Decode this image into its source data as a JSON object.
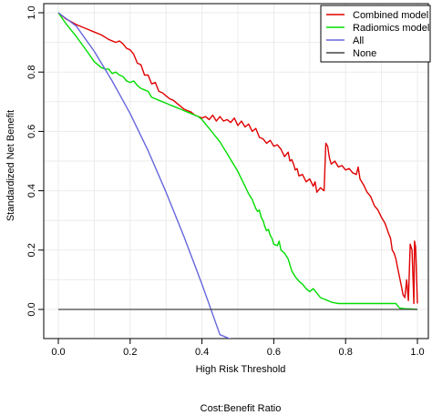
{
  "chart_data": {
    "type": "line",
    "xlabel": "High Risk Threshold",
    "ylabel": "Standardized Net Benefit",
    "secondary_xlabel": "Cost:Benefit Ratio",
    "xlim": [
      0,
      1
    ],
    "ylim": [
      0,
      1
    ],
    "x_ticks": [
      0.0,
      0.2,
      0.4,
      0.6,
      0.8,
      1.0
    ],
    "x_tick_labels": [
      "0.0",
      "0.2",
      "0.4",
      "0.6",
      "0.8",
      "1.0"
    ],
    "y_ticks": [
      0.0,
      0.2,
      0.4,
      0.6,
      0.8,
      1.0
    ],
    "y_tick_labels": [
      "0.0",
      "0.2",
      "0.4",
      "0.6",
      "0.8",
      "1.0"
    ],
    "grid": true,
    "legend_position": "top-right",
    "series": [
      {
        "name": "Combined model",
        "color": "#e00000",
        "points": [
          [
            0.0,
            1.0
          ],
          [
            0.02,
            0.98
          ],
          [
            0.05,
            0.96
          ],
          [
            0.08,
            0.945
          ],
          [
            0.1,
            0.935
          ],
          [
            0.12,
            0.925
          ],
          [
            0.14,
            0.91
          ],
          [
            0.16,
            0.9
          ],
          [
            0.17,
            0.905
          ],
          [
            0.18,
            0.895
          ],
          [
            0.19,
            0.88
          ],
          [
            0.2,
            0.875
          ],
          [
            0.21,
            0.86
          ],
          [
            0.22,
            0.83
          ],
          [
            0.23,
            0.825
          ],
          [
            0.24,
            0.79
          ],
          [
            0.25,
            0.79
          ],
          [
            0.26,
            0.76
          ],
          [
            0.27,
            0.765
          ],
          [
            0.28,
            0.735
          ],
          [
            0.29,
            0.73
          ],
          [
            0.3,
            0.72
          ],
          [
            0.31,
            0.71
          ],
          [
            0.32,
            0.705
          ],
          [
            0.33,
            0.695
          ],
          [
            0.34,
            0.685
          ],
          [
            0.35,
            0.675
          ],
          [
            0.36,
            0.67
          ],
          [
            0.37,
            0.665
          ],
          [
            0.38,
            0.655
          ],
          [
            0.39,
            0.65
          ],
          [
            0.4,
            0.645
          ],
          [
            0.41,
            0.65
          ],
          [
            0.42,
            0.64
          ],
          [
            0.43,
            0.655
          ],
          [
            0.44,
            0.635
          ],
          [
            0.45,
            0.65
          ],
          [
            0.46,
            0.635
          ],
          [
            0.47,
            0.64
          ],
          [
            0.48,
            0.63
          ],
          [
            0.49,
            0.645
          ],
          [
            0.5,
            0.62
          ],
          [
            0.51,
            0.635
          ],
          [
            0.52,
            0.615
          ],
          [
            0.53,
            0.625
          ],
          [
            0.54,
            0.6
          ],
          [
            0.55,
            0.61
          ],
          [
            0.56,
            0.58
          ],
          [
            0.57,
            0.575
          ],
          [
            0.58,
            0.56
          ],
          [
            0.59,
            0.57
          ],
          [
            0.6,
            0.55
          ],
          [
            0.61,
            0.555
          ],
          [
            0.62,
            0.54
          ],
          [
            0.63,
            0.515
          ],
          [
            0.64,
            0.53
          ],
          [
            0.645,
            0.5
          ],
          [
            0.65,
            0.505
          ],
          [
            0.655,
            0.49
          ],
          [
            0.66,
            0.47
          ],
          [
            0.665,
            0.475
          ],
          [
            0.67,
            0.45
          ],
          [
            0.68,
            0.455
          ],
          [
            0.69,
            0.43
          ],
          [
            0.7,
            0.44
          ],
          [
            0.71,
            0.415
          ],
          [
            0.715,
            0.43
          ],
          [
            0.72,
            0.395
          ],
          [
            0.73,
            0.41
          ],
          [
            0.74,
            0.4
          ],
          [
            0.745,
            0.56
          ],
          [
            0.75,
            0.55
          ],
          [
            0.755,
            0.51
          ],
          [
            0.76,
            0.49
          ],
          [
            0.77,
            0.5
          ],
          [
            0.78,
            0.48
          ],
          [
            0.79,
            0.485
          ],
          [
            0.8,
            0.47
          ],
          [
            0.81,
            0.475
          ],
          [
            0.82,
            0.46
          ],
          [
            0.83,
            0.455
          ],
          [
            0.835,
            0.48
          ],
          [
            0.84,
            0.44
          ],
          [
            0.85,
            0.42
          ],
          [
            0.86,
            0.395
          ],
          [
            0.87,
            0.38
          ],
          [
            0.88,
            0.35
          ],
          [
            0.89,
            0.335
          ],
          [
            0.9,
            0.31
          ],
          [
            0.905,
            0.3
          ],
          [
            0.91,
            0.29
          ],
          [
            0.92,
            0.255
          ],
          [
            0.925,
            0.24
          ],
          [
            0.93,
            0.2
          ],
          [
            0.935,
            0.19
          ],
          [
            0.94,
            0.17
          ],
          [
            0.945,
            0.14
          ],
          [
            0.95,
            0.11
          ],
          [
            0.955,
            0.08
          ],
          [
            0.96,
            0.05
          ],
          [
            0.965,
            0.04
          ],
          [
            0.97,
            0.1
          ],
          [
            0.975,
            0.03
          ],
          [
            0.98,
            0.22
          ],
          [
            0.985,
            0.2
          ],
          [
            0.99,
            0.02
          ],
          [
            0.992,
            0.23
          ],
          [
            0.995,
            0.21
          ],
          [
            1.0,
            0.02
          ]
        ]
      },
      {
        "name": "Radiomics model",
        "color": "#00dd00",
        "points": [
          [
            0.0,
            1.0
          ],
          [
            0.02,
            0.965
          ],
          [
            0.05,
            0.92
          ],
          [
            0.08,
            0.87
          ],
          [
            0.1,
            0.835
          ],
          [
            0.12,
            0.815
          ],
          [
            0.13,
            0.81
          ],
          [
            0.14,
            0.81
          ],
          [
            0.15,
            0.795
          ],
          [
            0.16,
            0.8
          ],
          [
            0.17,
            0.79
          ],
          [
            0.18,
            0.785
          ],
          [
            0.19,
            0.77
          ],
          [
            0.2,
            0.765
          ],
          [
            0.21,
            0.77
          ],
          [
            0.22,
            0.755
          ],
          [
            0.23,
            0.745
          ],
          [
            0.24,
            0.74
          ],
          [
            0.25,
            0.735
          ],
          [
            0.26,
            0.715
          ],
          [
            0.27,
            0.71
          ],
          [
            0.28,
            0.705
          ],
          [
            0.29,
            0.7
          ],
          [
            0.3,
            0.695
          ],
          [
            0.31,
            0.69
          ],
          [
            0.32,
            0.685
          ],
          [
            0.33,
            0.68
          ],
          [
            0.34,
            0.675
          ],
          [
            0.35,
            0.67
          ],
          [
            0.36,
            0.665
          ],
          [
            0.37,
            0.66
          ],
          [
            0.38,
            0.655
          ],
          [
            0.39,
            0.65
          ],
          [
            0.4,
            0.64
          ],
          [
            0.41,
            0.625
          ],
          [
            0.42,
            0.61
          ],
          [
            0.43,
            0.595
          ],
          [
            0.44,
            0.58
          ],
          [
            0.45,
            0.565
          ],
          [
            0.46,
            0.545
          ],
          [
            0.47,
            0.525
          ],
          [
            0.48,
            0.505
          ],
          [
            0.49,
            0.485
          ],
          [
            0.5,
            0.465
          ],
          [
            0.51,
            0.44
          ],
          [
            0.52,
            0.415
          ],
          [
            0.53,
            0.39
          ],
          [
            0.54,
            0.37
          ],
          [
            0.55,
            0.34
          ],
          [
            0.555,
            0.33
          ],
          [
            0.56,
            0.335
          ],
          [
            0.565,
            0.31
          ],
          [
            0.57,
            0.3
          ],
          [
            0.575,
            0.28
          ],
          [
            0.58,
            0.265
          ],
          [
            0.585,
            0.27
          ],
          [
            0.59,
            0.25
          ],
          [
            0.595,
            0.24
          ],
          [
            0.6,
            0.22
          ],
          [
            0.61,
            0.215
          ],
          [
            0.615,
            0.23
          ],
          [
            0.62,
            0.2
          ],
          [
            0.63,
            0.19
          ],
          [
            0.64,
            0.17
          ],
          [
            0.65,
            0.13
          ],
          [
            0.66,
            0.11
          ],
          [
            0.67,
            0.095
          ],
          [
            0.68,
            0.085
          ],
          [
            0.69,
            0.07
          ],
          [
            0.7,
            0.06
          ],
          [
            0.71,
            0.07
          ],
          [
            0.72,
            0.055
          ],
          [
            0.73,
            0.04
          ],
          [
            0.74,
            0.035
          ],
          [
            0.75,
            0.03
          ],
          [
            0.76,
            0.025
          ],
          [
            0.77,
            0.022
          ],
          [
            0.78,
            0.02
          ],
          [
            0.8,
            0.02
          ],
          [
            0.82,
            0.02
          ],
          [
            0.84,
            0.02
          ],
          [
            0.86,
            0.02
          ],
          [
            0.88,
            0.02
          ],
          [
            0.9,
            0.02
          ],
          [
            0.92,
            0.02
          ],
          [
            0.94,
            0.02
          ],
          [
            0.95,
            0.005
          ],
          [
            0.96,
            0.003
          ],
          [
            0.97,
            0.002
          ],
          [
            0.98,
            0.002
          ],
          [
            1.0,
            0.0
          ]
        ]
      },
      {
        "name": "All",
        "color": "#6666dd",
        "points": [
          [
            0.0,
            1.0
          ],
          [
            0.05,
            0.955
          ],
          [
            0.1,
            0.87
          ],
          [
            0.15,
            0.77
          ],
          [
            0.2,
            0.66
          ],
          [
            0.25,
            0.535
          ],
          [
            0.3,
            0.395
          ],
          [
            0.35,
            0.245
          ],
          [
            0.4,
            0.085
          ],
          [
            0.45,
            -0.085
          ],
          [
            0.48,
            -0.1
          ]
        ]
      },
      {
        "name": "None",
        "color": "#444444",
        "points": [
          [
            0.0,
            0.0
          ],
          [
            1.0,
            0.0
          ]
        ]
      }
    ]
  }
}
